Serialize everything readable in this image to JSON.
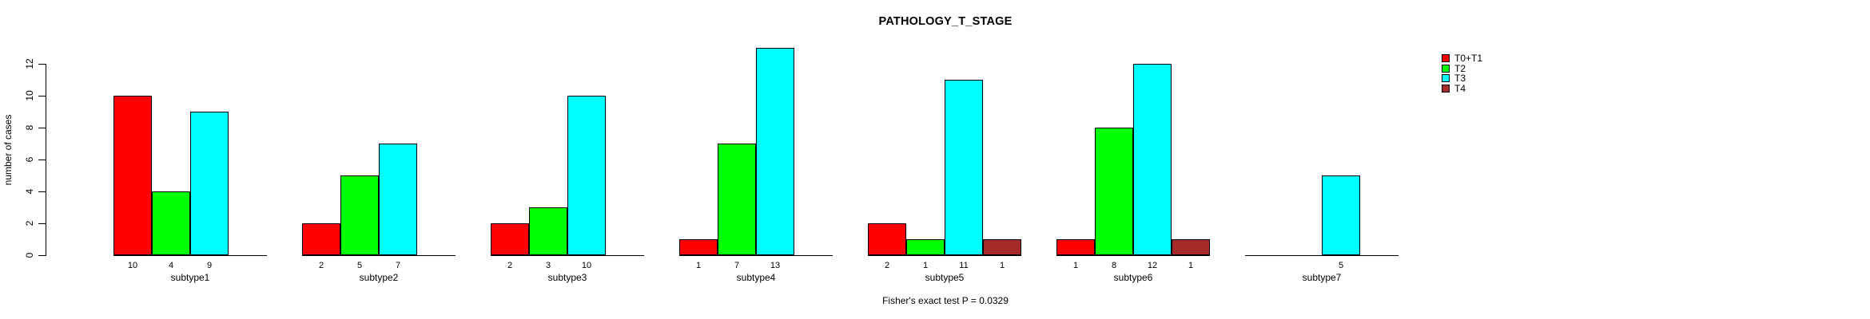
{
  "chart_data": {
    "type": "bar",
    "title": "PATHOLOGY_T_STAGE",
    "ylabel": "number of cases",
    "xlabel": "",
    "ylim": [
      0,
      12
    ],
    "yticks": [
      0,
      2,
      4,
      6,
      8,
      10,
      12
    ],
    "grid": false,
    "legend_position": "right",
    "bar_value_labels_shown": true,
    "annotation": "Fisher's exact test P = 0.0329",
    "categories": [
      "subtype1",
      "subtype2",
      "subtype3",
      "subtype4",
      "subtype5",
      "subtype6",
      "subtype7"
    ],
    "series": [
      {
        "name": "T0+T1",
        "color": "#FF0000",
        "values": [
          10,
          2,
          2,
          1,
          2,
          1,
          null
        ]
      },
      {
        "name": "T2",
        "color": "#00FF00",
        "values": [
          4,
          5,
          3,
          7,
          1,
          8,
          null
        ]
      },
      {
        "name": "T3",
        "color": "#00FFFF",
        "values": [
          9,
          7,
          10,
          13,
          11,
          12,
          5
        ]
      },
      {
        "name": "T4",
        "color": "#A52A2A",
        "values": [
          null,
          null,
          null,
          null,
          1,
          1,
          null
        ]
      }
    ]
  },
  "colors": {
    "background": "#FFFFFF",
    "axis": "#000000",
    "text": "#000000",
    "bar_border": "#000000"
  }
}
